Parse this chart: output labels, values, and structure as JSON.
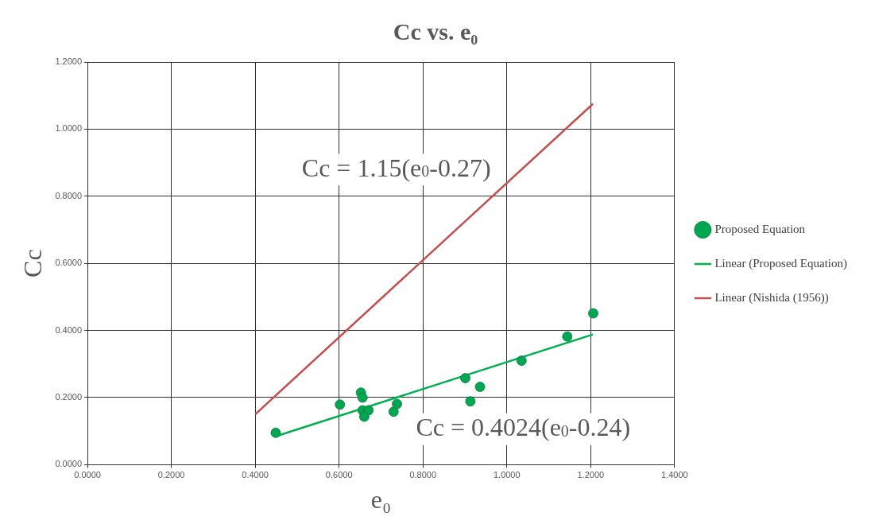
{
  "chart_data": {
    "type": "scatter",
    "title": "Cc vs. e₀",
    "xlabel": "e₀",
    "ylabel": "Cc",
    "xlim": [
      0,
      1.4
    ],
    "ylim": [
      0,
      1.2
    ],
    "xticks": [
      {
        "value": 0,
        "label": "0.0000"
      },
      {
        "value": 0.2,
        "label": "0.2000"
      },
      {
        "value": 0.4,
        "label": "0.4000"
      },
      {
        "value": 0.6,
        "label": "0.6000"
      },
      {
        "value": 0.8,
        "label": "0.8000"
      },
      {
        "value": 1.0,
        "label": "1.0000"
      },
      {
        "value": 1.2,
        "label": "1.2000"
      },
      {
        "value": 1.4,
        "label": "1.4000"
      }
    ],
    "yticks": [
      {
        "value": 0,
        "label": "0.0000"
      },
      {
        "value": 0.2,
        "label": "0.2000"
      },
      {
        "value": 0.4,
        "label": "0.4000"
      },
      {
        "value": 0.6,
        "label": "0.6000"
      },
      {
        "value": 0.8,
        "label": "0.8000"
      },
      {
        "value": 1.0,
        "label": "1.0000"
      },
      {
        "value": 1.2,
        "label": "1.2000"
      }
    ],
    "grid": true,
    "legend": "right",
    "series": [
      {
        "name": "Proposed Equation",
        "marker": "circle",
        "color": "#00a651",
        "x": [
          0.449,
          0.602,
          0.652,
          0.656,
          0.656,
          0.67,
          0.66,
          0.73,
          0.738,
          0.901,
          0.913,
          0.936,
          1.035,
          1.144,
          1.206
        ],
        "values": [
          0.095,
          0.179,
          0.215,
          0.2,
          0.162,
          0.162,
          0.143,
          0.158,
          0.181,
          0.258,
          0.189,
          0.232,
          0.31,
          0.382,
          0.451
        ]
      },
      {
        "name": "Linear (Proposed Equation)",
        "type": "line",
        "color": "#00b050",
        "x": [
          0.45,
          1.205
        ],
        "values": [
          0.085,
          0.388
        ]
      },
      {
        "name": "Linear (Nishida (1956))",
        "type": "line",
        "color": "#c0504d",
        "x": [
          0.4,
          1.205
        ],
        "values": [
          0.15,
          1.075
        ]
      }
    ],
    "annotations": [
      "Cc = 1.15(e$_{0}$-0.27)",
      "Cc = 0.4024(e$_{0}$-0.24)"
    ]
  }
}
